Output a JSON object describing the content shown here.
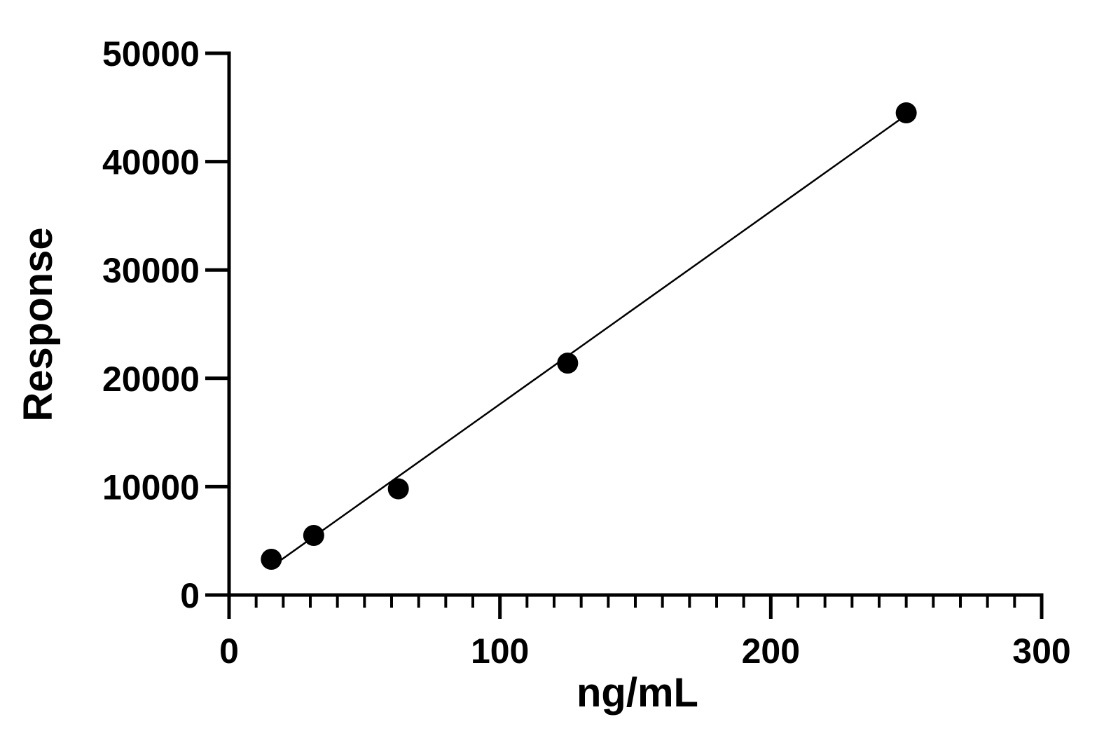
{
  "chart_data": {
    "type": "scatter",
    "title": "",
    "xlabel": "ng/mL",
    "ylabel": "Response",
    "xlim": [
      0,
      300
    ],
    "ylim": [
      0,
      50000
    ],
    "x_ticks": [
      0,
      100,
      200,
      300
    ],
    "x_tick_labels": [
      "0",
      "100",
      "200",
      "300"
    ],
    "x_minor_step": 10,
    "y_ticks": [
      0,
      10000,
      20000,
      30000,
      40000,
      50000
    ],
    "y_tick_labels": [
      "0",
      "10000",
      "20000",
      "30000",
      "40000",
      "50000"
    ],
    "grid": false,
    "series": [
      {
        "x": [
          15.6,
          31.25,
          62.5,
          125,
          250
        ],
        "y": [
          3300,
          5500,
          9800,
          21400,
          44500
        ],
        "color": "#000000",
        "marker": "circle"
      }
    ],
    "fit_line": {
      "x": [
        15.6,
        250
      ],
      "y": [
        2600,
        44300
      ],
      "color": "#000000"
    }
  }
}
